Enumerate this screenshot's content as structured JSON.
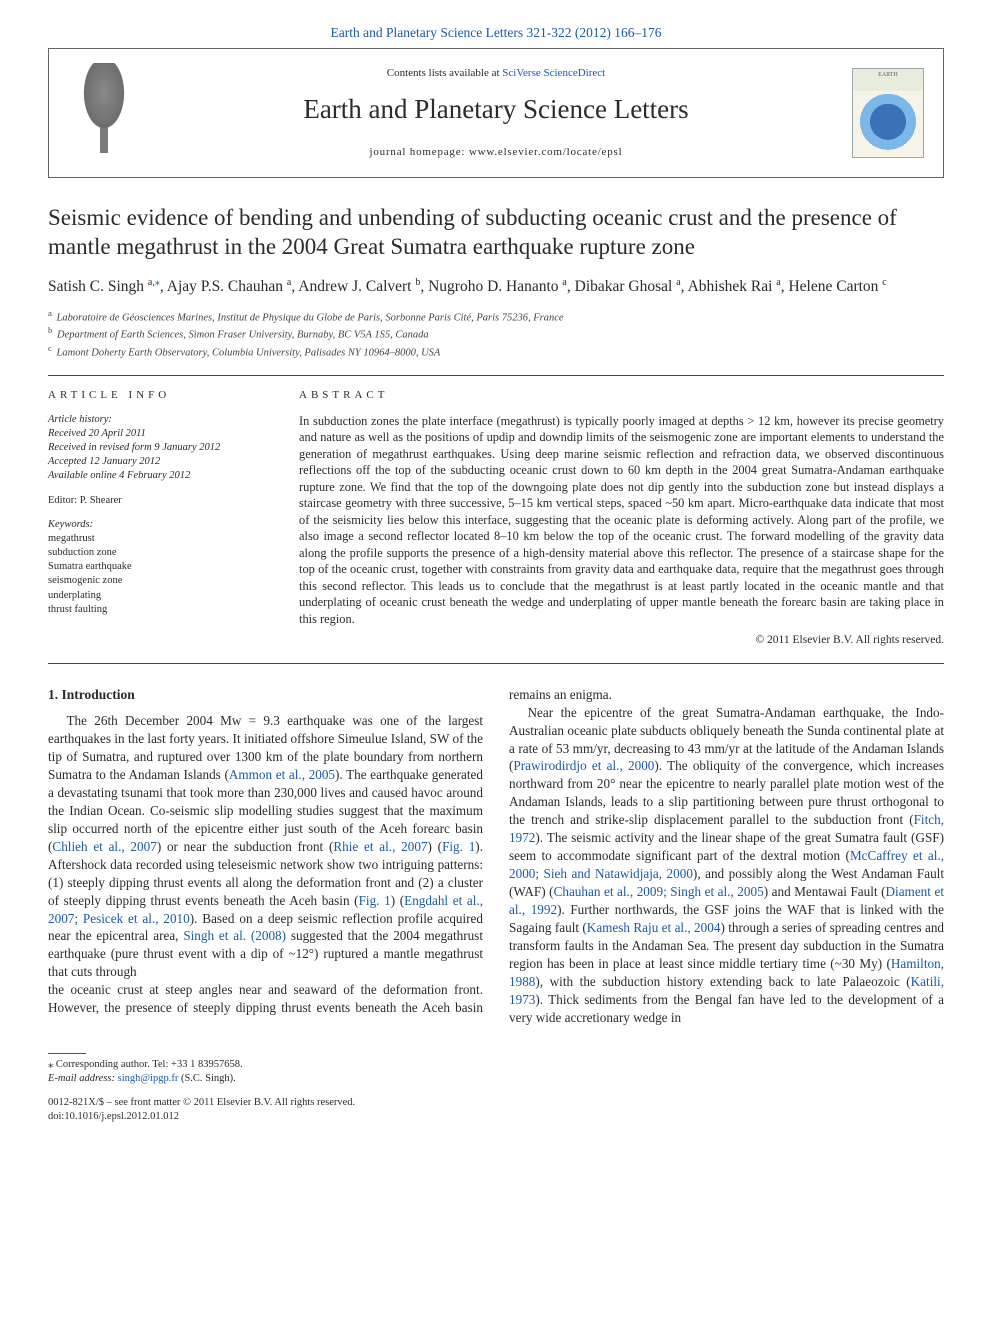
{
  "journal_ref_link": "Earth and Planetary Science Letters 321-322 (2012) 166–176",
  "banner": {
    "sciverse_pre": "Contents lists available at ",
    "sciverse_link": "SciVerse ScienceDirect",
    "journal_name": "Earth and Planetary Science Letters",
    "homepage_pre": "journal homepage: ",
    "homepage": "www.elsevier.com/locate/epsl",
    "cover_label_top": "EARTH",
    "cover_label_bottom": ""
  },
  "title": "Seismic evidence of bending and unbending of subducting oceanic crust and the presence of mantle megathrust in the 2004 Great Sumatra earthquake rupture zone",
  "authors": [
    {
      "name": "Satish C. Singh",
      "affil": "a",
      "corr": true
    },
    {
      "name": "Ajay P.S. Chauhan",
      "affil": "a"
    },
    {
      "name": "Andrew J. Calvert",
      "affil": "b"
    },
    {
      "name": "Nugroho D. Hananto",
      "affil": "a"
    },
    {
      "name": "Dibakar Ghosal",
      "affil": "a"
    },
    {
      "name": "Abhishek Rai",
      "affil": "a"
    },
    {
      "name": "Helene Carton",
      "affil": "c"
    }
  ],
  "affiliations": {
    "a": "Laboratoire de Géosciences Marines, Institut de Physique du Globe de Paris, Sorbonne Paris Cité, Paris 75236, France",
    "b": "Department of Earth Sciences, Simon Fraser University, Burnaby, BC V5A 1S5, Canada",
    "c": "Lamont Doherty Earth Observatory, Columbia University, Palisades NY 10964–8000, USA"
  },
  "article_info": {
    "heading": "article info",
    "history_label": "Article history:",
    "received": "Received 20 April 2011",
    "revised": "Received in revised form 9 January 2012",
    "accepted": "Accepted 12 January 2012",
    "online": "Available online 4 February 2012",
    "editor": "Editor: P. Shearer",
    "keywords_label": "Keywords:",
    "keywords": [
      "megathrust",
      "subduction zone",
      "Sumatra earthquake",
      "seismogenic zone",
      "underplating",
      "thrust faulting"
    ]
  },
  "abstract": {
    "heading": "abstract",
    "text": "In subduction zones the plate interface (megathrust) is typically poorly imaged at depths > 12 km, however its precise geometry and nature as well as the positions of updip and downdip limits of the seismogenic zone are important elements to understand the generation of megathrust earthquakes. Using deep marine seismic reflection and refraction data, we observed discontinuous reflections off the top of the subducting oceanic crust down to 60 km depth in the 2004 great Sumatra-Andaman earthquake rupture zone. We find that the top of the downgoing plate does not dip gently into the subduction zone but instead displays a staircase geometry with three successive, 5–15 km vertical steps, spaced ~50 km apart. Micro-earthquake data indicate that most of the seismicity lies below this interface, suggesting that the oceanic plate is deforming actively. Along part of the profile, we also image a second reflector located 8–10 km below the top of the oceanic crust. The forward modelling of the gravity data along the profile supports the presence of a high-density material above this reflector. The presence of a staircase shape for the top of the oceanic crust, together with constraints from gravity data and earthquake data, require that the megathrust goes through this second reflector. This leads us to conclude that the megathrust is at least partly located in the oceanic mantle and that underplating of oceanic crust beneath the wedge and underplating of upper mantle beneath the forearc basin are taking place in this region.",
    "copyright": "© 2011 Elsevier B.V. All rights reserved."
  },
  "section1": {
    "heading": "1. Introduction",
    "p1a": "The 26th December 2004 Mw = 9.3 earthquake was one of the largest earthquakes in the last forty years. It initiated offshore Simeulue Island, SW of the tip of Sumatra, and ruptured over 1300 km of the plate boundary from northern Sumatra to the Andaman Islands (",
    "ammon": "Ammon et al., 2005",
    "p1b": "). The earthquake generated a devastating tsunami that took more than 230,000 lives and caused havoc around the Indian Ocean. Co-seismic slip modelling studies suggest that the maximum slip occurred north of the epicentre either just south of the Aceh forearc basin (",
    "chlieh": "Chlieh et al., 2007",
    "p1c": ") or near the subduction front (",
    "rhie": "Rhie et al., 2007",
    "p1d": ") (",
    "fig1a": "Fig. 1",
    "p1e": "). Aftershock data recorded using teleseismic network show two intriguing patterns: (1) steeply dipping thrust events all along the deformation front and (2) a cluster of steeply dipping thrust events beneath the Aceh basin (",
    "fig1b": "Fig. 1",
    "p1f": ") (",
    "engdahl": "Engdahl et al., 2007; Pesicek et al., 2010",
    "p1g": "). Based on a deep seismic reflection profile acquired near the epicentral area, ",
    "singh08": "Singh et al. (2008)",
    "p1h": " suggested that the 2004 megathrust earthquake (pure thrust event with a dip of ~12°) ruptured a mantle megathrust that cuts through",
    "p2a": "the oceanic crust at steep angles near and seaward of the deformation front. However, the presence of steeply dipping thrust events beneath the Aceh basin remains an enigma.",
    "p3a": "Near the epicentre of the great Sumatra-Andaman earthquake, the Indo-Australian oceanic plate subducts obliquely beneath the Sunda continental plate at a rate of 53 mm/yr, decreasing to 43 mm/yr at the latitude of the Andaman Islands (",
    "praw": "Prawirodirdjo et al., 2000",
    "p3b": "). The obliquity of the convergence, which increases northward from 20° near the epicentre to nearly parallel plate motion west of the Andaman Islands, leads to a slip partitioning between pure thrust orthogonal to the trench and strike-slip displacement parallel to the subduction front (",
    "fitch": "Fitch, 1972",
    "p3c": "). The seismic activity and the linear shape of the great Sumatra fault (GSF) seem to accommodate significant part of the dextral motion (",
    "mccaff": "McCaffrey et al., 2000; Sieh and Natawidjaja, 2000",
    "p3d": "), and possibly along the West Andaman Fault (WAF) (",
    "chauhan": "Chauhan et al., 2009; Singh et al., 2005",
    "p3e": ") and Mentawai Fault (",
    "diament": "Diament et al., 1992",
    "p3f": "). Further northwards, the GSF joins the WAF that is linked with the Sagaing fault (",
    "kamesh": "Kamesh Raju et al., 2004",
    "p3g": ") through a series of spreading centres and transform faults in the Andaman Sea. The present day subduction in the Sumatra region has been in place at least since middle tertiary time (~30 My) (",
    "hamilton": "Hamilton, 1988",
    "p3h": "), with the subduction history extending back to late Palaeozoic (",
    "katili": "Katili, 1973",
    "p3i": "). Thick sediments from the Bengal fan have led to the development of a very wide accretionary wedge in"
  },
  "footer": {
    "corr_label": "⁎ Corresponding author. Tel: +33 1 83957658.",
    "email_label": "E-mail address: ",
    "email": "singh@ipgp.fr",
    "email_person": " (S.C. Singh).",
    "issn": "0012-821X/$ – see front matter © 2011 Elsevier B.V. All rights reserved.",
    "doi": "doi:10.1016/j.epsl.2012.01.012"
  },
  "colors": {
    "link": "#1a5aa8",
    "text": "#2b2b2b",
    "rule": "#444444"
  }
}
